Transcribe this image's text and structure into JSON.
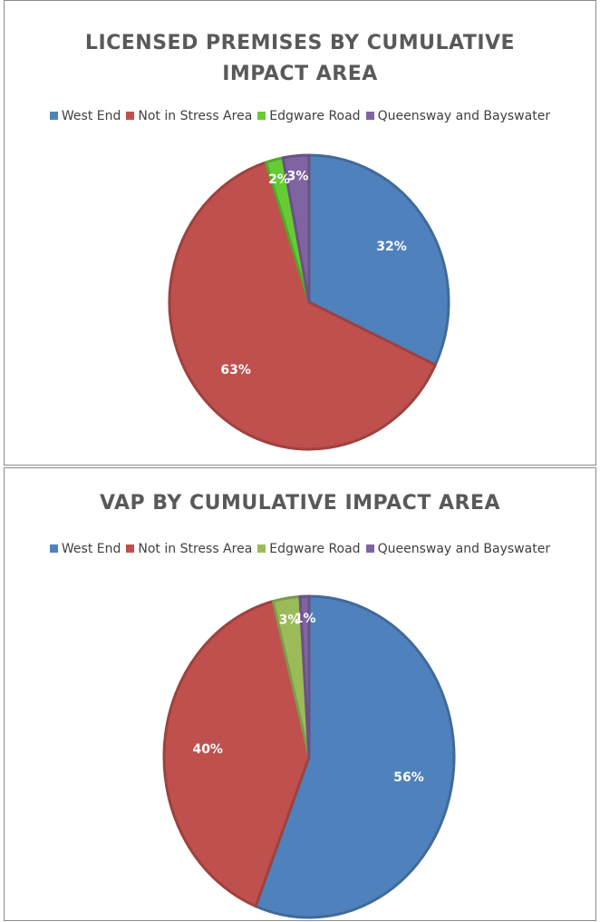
{
  "chart_data": [
    {
      "type": "pie",
      "title": "LICENSED PREMISES BY CUMULATIVE IMPACT AREA",
      "categories": [
        "West End",
        "Not in Stress Area",
        "Edgware Road",
        "Queensway and Bayswater"
      ],
      "values": [
        32,
        63,
        2,
        3
      ],
      "value_labels": [
        "32%",
        "63%",
        "2%",
        "3%"
      ],
      "colors": [
        "#4f81bd",
        "#c0504d",
        "#66cc33",
        "#8064a2"
      ],
      "legend": "top"
    },
    {
      "type": "pie",
      "title": "VAP BY CUMULATIVE IMPACT AREA",
      "categories": [
        "West End",
        "Not in Stress Area",
        "Edgware Road",
        "Queensway and Bayswater"
      ],
      "values": [
        56,
        40,
        3,
        1
      ],
      "value_labels": [
        "56%",
        "40%",
        "3%",
        "1%"
      ],
      "colors": [
        "#4f81bd",
        "#c0504d",
        "#9bbb59",
        "#8064a2"
      ],
      "legend": "top"
    }
  ]
}
